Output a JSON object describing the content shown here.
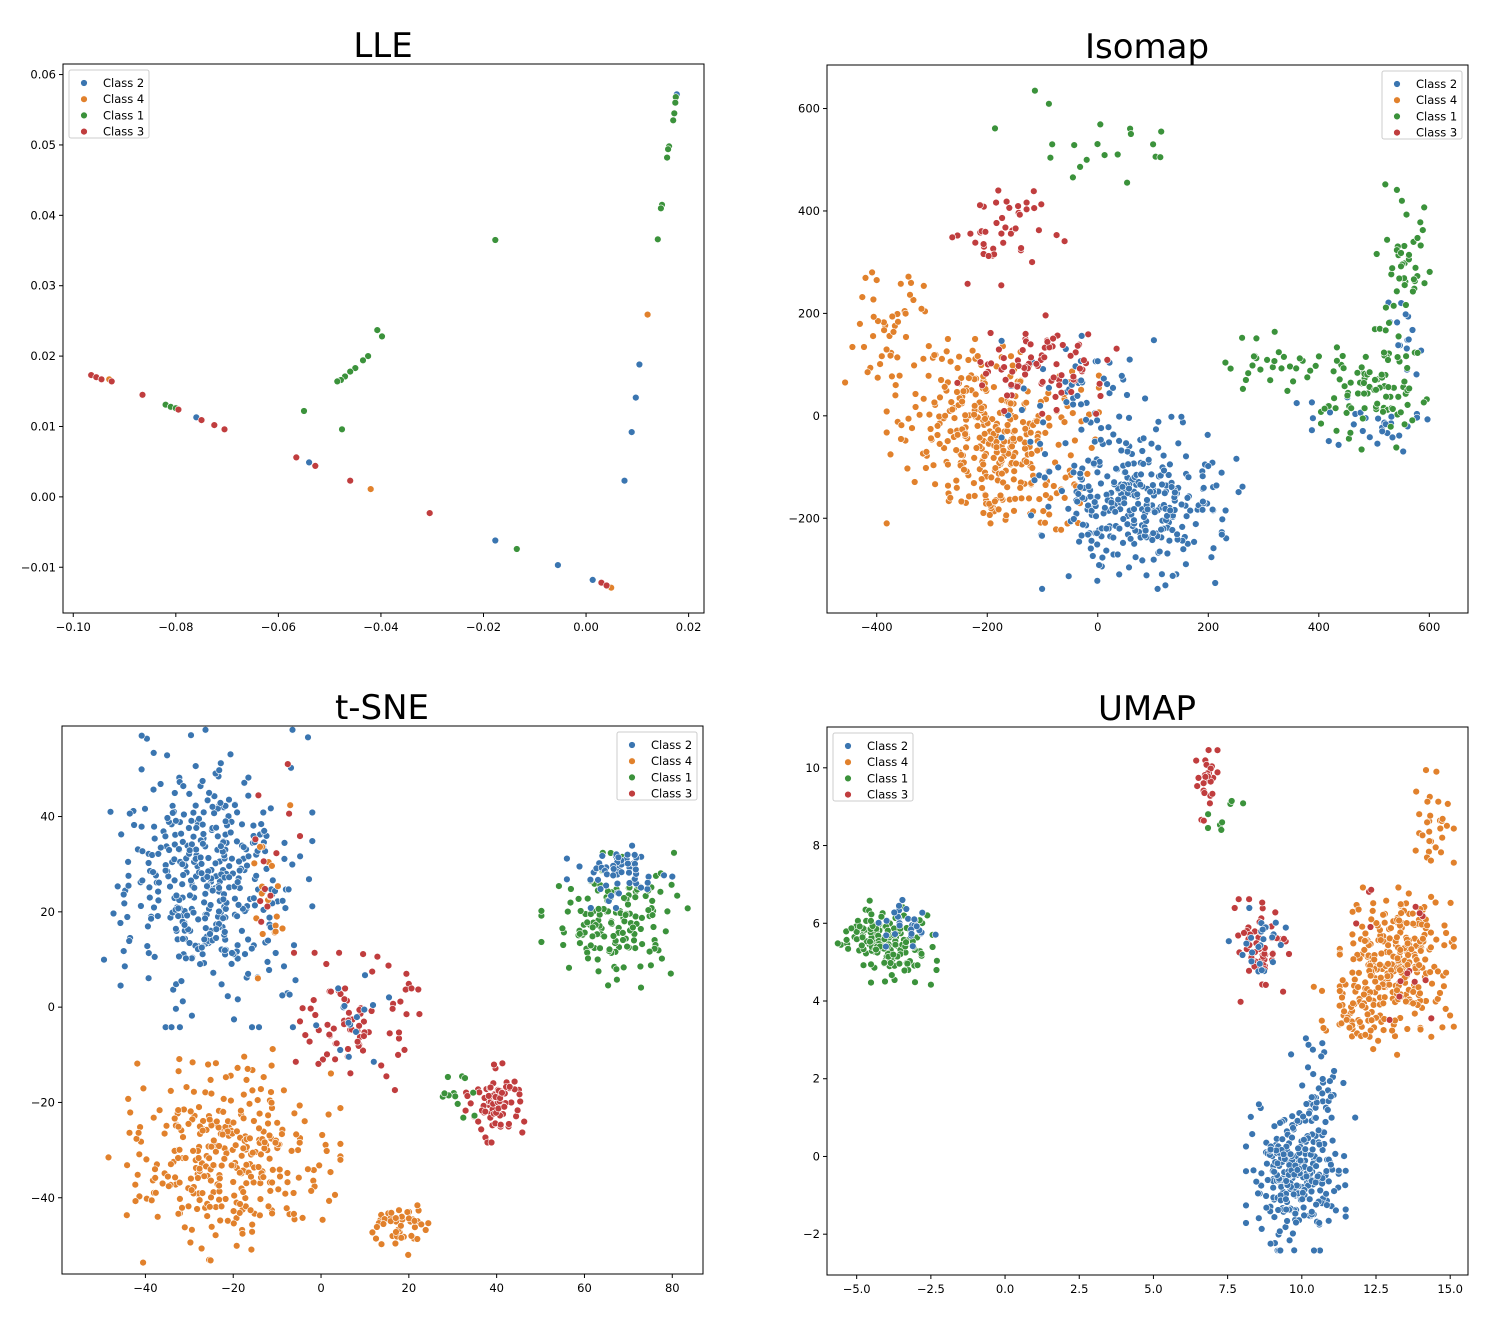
{
  "figure": {
    "panels": [
      "LLE",
      "Isomap",
      "t-SNE",
      "UMAP"
    ]
  },
  "colors": {
    "Class 2": "#3a75b0",
    "Class 4": "#e1812c",
    "Class 1": "#3b923b",
    "Class 3": "#c03d3e"
  },
  "chart_data": [
    {
      "type": "scatter",
      "title": "LLE",
      "xlabel": "",
      "ylabel": "",
      "xlim": [
        -0.102,
        0.023
      ],
      "ylim": [
        -0.0165,
        0.0615
      ],
      "xticks": [
        -0.1,
        -0.08,
        -0.06,
        -0.04,
        -0.02,
        0.0,
        0.02
      ],
      "xtick_labels": [
        "−0.10",
        "−0.08",
        "−0.06",
        "−0.04",
        "−0.02",
        "0.00",
        "0.02"
      ],
      "yticks": [
        -0.01,
        0.0,
        0.01,
        0.02,
        0.03,
        0.04,
        0.05,
        0.06
      ],
      "ytick_labels": [
        "−0.01",
        "0.00",
        "0.01",
        "0.02",
        "0.03",
        "0.04",
        "0.05",
        "0.06"
      ],
      "legend": {
        "placement": "upper-left",
        "entries": [
          "Class 2",
          "Class 4",
          "Class 1",
          "Class 3"
        ]
      },
      "grid": false,
      "series": [
        {
          "name": "Class 2",
          "points": [
            [
              0.0177,
              0.0572
            ],
            [
              0.0104,
              0.0188
            ],
            [
              0.0097,
              0.0141
            ],
            [
              0.0089,
              0.0092
            ],
            [
              0.0075,
              0.0023
            ],
            [
              -0.0177,
              -0.0062
            ],
            [
              -0.0055,
              -0.0097
            ],
            [
              0.0013,
              -0.0118
            ],
            [
              -0.076,
              0.0113
            ],
            [
              -0.054,
              0.0049
            ]
          ]
        },
        {
          "name": "Class 4",
          "points": [
            [
              0.012,
              0.0259
            ],
            [
              0.0049,
              -0.0129
            ],
            [
              -0.042,
              0.0011
            ],
            [
              -0.093,
              0.0167
            ]
          ]
        },
        {
          "name": "Class 1",
          "points": [
            [
              0.0175,
              0.0568
            ],
            [
              0.0174,
              0.056
            ],
            [
              0.0172,
              0.0545
            ],
            [
              0.017,
              0.0535
            ],
            [
              0.0162,
              0.0498
            ],
            [
              0.016,
              0.0494
            ],
            [
              0.0158,
              0.0482
            ],
            [
              0.0148,
              0.0415
            ],
            [
              0.0146,
              0.041
            ],
            [
              0.014,
              0.0366
            ],
            [
              -0.0177,
              0.0365
            ],
            [
              -0.0407,
              0.0237
            ],
            [
              -0.0398,
              0.0228
            ],
            [
              -0.0425,
              0.02
            ],
            [
              -0.0435,
              0.0194
            ],
            [
              -0.045,
              0.0183
            ],
            [
              -0.046,
              0.0178
            ],
            [
              -0.047,
              0.0171
            ],
            [
              -0.0478,
              0.0166
            ],
            [
              -0.0485,
              0.0164
            ],
            [
              -0.055,
              0.0122
            ],
            [
              -0.0476,
              0.0096
            ],
            [
              -0.0135,
              -0.0074
            ],
            [
              -0.082,
              0.0131
            ],
            [
              -0.081,
              0.0128
            ],
            [
              -0.08,
              0.0126
            ]
          ]
        },
        {
          "name": "Class 3",
          "points": [
            [
              -0.0965,
              0.0173
            ],
            [
              -0.0955,
              0.017
            ],
            [
              -0.0945,
              0.0167
            ],
            [
              -0.0925,
              0.0164
            ],
            [
              -0.0865,
              0.0145
            ],
            [
              -0.0795,
              0.0124
            ],
            [
              -0.075,
              0.0109
            ],
            [
              -0.0725,
              0.0102
            ],
            [
              -0.0705,
              0.0096
            ],
            [
              -0.0565,
              0.0056
            ],
            [
              -0.0528,
              0.0044
            ],
            [
              -0.046,
              0.0023
            ],
            [
              -0.0305,
              -0.0023
            ],
            [
              0.003,
              -0.0122
            ],
            [
              0.004,
              -0.0126
            ]
          ]
        }
      ]
    },
    {
      "type": "scatter",
      "title": "Isomap",
      "xlabel": "",
      "ylabel": "",
      "xlim": [
        -490,
        670
      ],
      "ylim": [
        -385,
        685
      ],
      "xticks": [
        -400,
        -200,
        0,
        200,
        400,
        600
      ],
      "xtick_labels": [
        "−400",
        "−200",
        "0",
        "200",
        "400",
        "600"
      ],
      "yticks": [
        -200,
        0,
        200,
        400,
        600
      ],
      "ytick_labels": [
        "−200",
        "0",
        "200",
        "400",
        "600"
      ],
      "legend": {
        "placement": "upper-right",
        "entries": [
          "Class 2",
          "Class 4",
          "Class 1",
          "Class 3"
        ]
      },
      "grid": false,
      "clusters": [
        {
          "series": "Class 4",
          "n": 330,
          "cx": -190,
          "cy": -30,
          "sx": 80,
          "sy": 75
        },
        {
          "series": "Class 4",
          "n": 45,
          "cx": -380,
          "cy": 160,
          "sx": 40,
          "sy": 50
        },
        {
          "series": "Class 4",
          "n": 40,
          "cx": -120,
          "cy": -150,
          "sx": 50,
          "sy": 40
        },
        {
          "series": "Class 2",
          "n": 330,
          "cx": 70,
          "cy": -170,
          "sx": 80,
          "sy": 70
        },
        {
          "series": "Class 2",
          "n": 50,
          "cx": -30,
          "cy": 50,
          "sx": 60,
          "sy": 60
        },
        {
          "series": "Class 2",
          "n": 30,
          "cx": 480,
          "cy": -20,
          "sx": 50,
          "sy": 25
        },
        {
          "series": "Class 2",
          "n": 15,
          "cx": 560,
          "cy": 160,
          "sx": 30,
          "sy": 50
        },
        {
          "series": "Class 3",
          "n": 45,
          "cx": -180,
          "cy": 360,
          "sx": 50,
          "sy": 50
        },
        {
          "series": "Class 3",
          "n": 80,
          "cx": -110,
          "cy": 100,
          "sx": 60,
          "sy": 40
        },
        {
          "series": "Class 1",
          "n": 90,
          "cx": 500,
          "cy": 50,
          "sx": 40,
          "sy": 50
        },
        {
          "series": "Class 1",
          "n": 45,
          "cx": 550,
          "cy": 290,
          "sx": 25,
          "sy": 80
        },
        {
          "series": "Class 1",
          "n": 30,
          "cx": 320,
          "cy": 100,
          "sx": 60,
          "sy": 30
        },
        {
          "series": "Class 1",
          "n": 20,
          "cx": 30,
          "cy": 540,
          "sx": 90,
          "sy": 60
        }
      ]
    },
    {
      "type": "scatter",
      "title": "t-SNE",
      "xlabel": "",
      "ylabel": "",
      "xlim": [
        -59,
        87
      ],
      "ylim": [
        -56,
        59
      ],
      "xticks": [
        -40,
        -20,
        0,
        20,
        40,
        60,
        80
      ],
      "xtick_labels": [
        "−40",
        "−20",
        "0",
        "20",
        "40",
        "60",
        "80"
      ],
      "yticks": [
        -40,
        -20,
        0,
        20,
        40
      ],
      "ytick_labels": [
        "−40",
        "−20",
        "0",
        "20",
        "40"
      ],
      "legend": {
        "placement": "upper-right",
        "entries": [
          "Class 2",
          "Class 4",
          "Class 1",
          "Class 3"
        ]
      },
      "grid": false,
      "clusters": [
        {
          "series": "Class 2",
          "n": 420,
          "cx": -26,
          "cy": 27,
          "sx": 10,
          "sy": 13
        },
        {
          "series": "Class 4",
          "n": 330,
          "cx": -22,
          "cy": -32,
          "sx": 11,
          "sy": 9
        },
        {
          "series": "Class 4",
          "n": 45,
          "cx": 18,
          "cy": -46,
          "sx": 3,
          "sy": 2.5
        },
        {
          "series": "Class 4",
          "n": 20,
          "cx": -10,
          "cy": 20,
          "sx": 3,
          "sy": 12
        },
        {
          "series": "Class 3",
          "n": 80,
          "cx": 8,
          "cy": -3,
          "sx": 6,
          "sy": 6
        },
        {
          "series": "Class 3",
          "n": 75,
          "cx": 40,
          "cy": -20,
          "sx": 3,
          "sy": 3.5
        },
        {
          "series": "Class 3",
          "n": 12,
          "cx": -12,
          "cy": 27,
          "sx": 3,
          "sy": 10
        },
        {
          "series": "Class 1",
          "n": 150,
          "cx": 67,
          "cy": 18,
          "sx": 7,
          "sy": 6
        },
        {
          "series": "Class 1",
          "n": 12,
          "cx": 28,
          "cy": -16,
          "sx": 3,
          "sy": 3
        },
        {
          "series": "Class 2",
          "n": 60,
          "cx": 68,
          "cy": 28,
          "sx": 5,
          "sy": 3
        },
        {
          "series": "Class 2",
          "n": 15,
          "cx": 8,
          "cy": -3,
          "sx": 5,
          "sy": 5
        }
      ]
    },
    {
      "type": "scatter",
      "title": "UMAP",
      "xlabel": "",
      "ylabel": "",
      "xlim": [
        -6.0,
        15.6
      ],
      "ylim": [
        -3.05,
        11.05
      ],
      "xticks": [
        -5.0,
        -2.5,
        0.0,
        2.5,
        5.0,
        7.5,
        10.0,
        12.5,
        15.0
      ],
      "xtick_labels": [
        "−5.0",
        "−2.5",
        "0.0",
        "2.5",
        "5.0",
        "7.5",
        "10.0",
        "12.5",
        "15.0"
      ],
      "yticks": [
        -2,
        0,
        2,
        4,
        6,
        8,
        10
      ],
      "ytick_labels": [
        "−2",
        "0",
        "2",
        "4",
        "6",
        "8",
        "10"
      ],
      "legend": {
        "placement": "upper-left",
        "entries": [
          "Class 2",
          "Class 4",
          "Class 1",
          "Class 3"
        ]
      },
      "grid": false,
      "clusters": [
        {
          "series": "Class 1",
          "n": 160,
          "cx": -3.9,
          "cy": 5.5,
          "sx": 0.75,
          "sy": 0.45
        },
        {
          "series": "Class 2",
          "n": 30,
          "cx": -3.3,
          "cy": 6.0,
          "sx": 0.4,
          "sy": 0.25
        },
        {
          "series": "Class 2",
          "n": 300,
          "cx": 9.8,
          "cy": -0.5,
          "sx": 0.7,
          "sy": 0.8
        },
        {
          "series": "Class 2",
          "n": 40,
          "cx": 10.6,
          "cy": 1.6,
          "sx": 0.5,
          "sy": 0.6
        },
        {
          "series": "Class 4",
          "n": 290,
          "cx": 13.2,
          "cy": 5.0,
          "sx": 0.8,
          "sy": 0.8
        },
        {
          "series": "Class 4",
          "n": 50,
          "cx": 11.8,
          "cy": 3.6,
          "sx": 0.6,
          "sy": 0.5
        },
        {
          "series": "Class 4",
          "n": 30,
          "cx": 14.4,
          "cy": 8.5,
          "sx": 0.3,
          "sy": 0.6
        },
        {
          "series": "Class 3",
          "n": 55,
          "cx": 8.7,
          "cy": 5.3,
          "sx": 0.4,
          "sy": 0.55
        },
        {
          "series": "Class 3",
          "n": 30,
          "cx": 6.8,
          "cy": 9.6,
          "sx": 0.15,
          "sy": 0.4
        },
        {
          "series": "Class 2",
          "n": 25,
          "cx": 8.5,
          "cy": 5.4,
          "sx": 0.4,
          "sy": 0.5
        },
        {
          "series": "Class 1",
          "n": 8,
          "cx": 7.3,
          "cy": 8.7,
          "sx": 0.3,
          "sy": 0.3
        },
        {
          "series": "Class 3",
          "n": 15,
          "cx": 13.3,
          "cy": 5.5,
          "sx": 0.8,
          "sy": 0.9
        }
      ]
    }
  ]
}
